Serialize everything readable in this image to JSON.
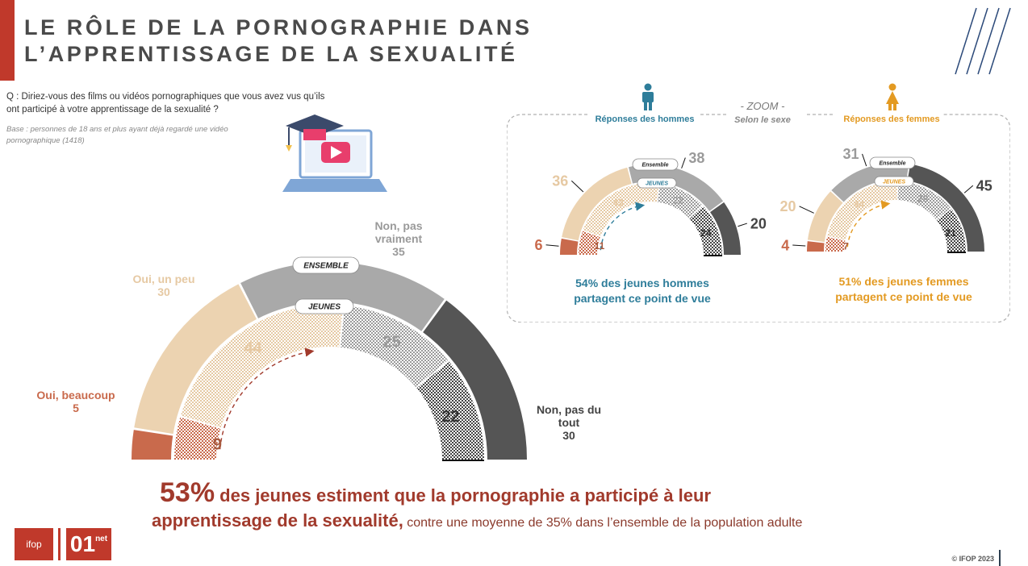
{
  "title_line1": "LE RÔLE DE LA PORNOGRAPHIE DANS",
  "title_line2": "L’APPRENTISSAGE DE LA SEXUALITÉ",
  "question": "Q : Diriez-vous des films ou vidéos pornographiques que vous avez vus qu’ils ont participé à votre apprentissage de la sexualité ?",
  "base": "Base : personnes de 18 ans et plus ayant déjà regardé une vidéo pornographique (1418)",
  "zoom_label": "- ZOOM -",
  "zoom_sub": "Selon le sexe",
  "men_header": "Réponses des hommes",
  "women_header": "Réponses des femmes",
  "men_note_line1": "54%  des jeunes hommes",
  "men_note_line2": "partagent ce point de vue",
  "women_note_line1": "51%  des jeunes femmes",
  "women_note_line2": "partagent ce point de vue",
  "conclusion_pct": "53%",
  "conclusion_part1": " des jeunes estiment que la pornographie a participé à leur",
  "conclusion_part2": "apprentissage de la sexualité,",
  "conclusion_part3": " contre une moyenne de 35% dans l’ensemble de la population adulte",
  "copyright": "© IFOP 2023",
  "logo_ifop": "ifop",
  "logo_01": "01",
  "logo_01_sup": "net",
  "colors": {
    "beaucoup": "#c96a4c",
    "unpeu": "#ecd3b1",
    "pasvraiment": "#a9a9a9",
    "pasdutout": "#555555",
    "accent": "#a13a2c",
    "men": "#2e7d9a",
    "women": "#e39a22"
  },
  "chart_data": [
    {
      "type": "semi-donut",
      "id": "main",
      "outer_label": "ENSEMBLE",
      "inner_label": "JEUNES",
      "categories": [
        "Oui, beaucoup",
        "Oui, un peu",
        "Non, pas vraiment",
        "Non, pas du tout"
      ],
      "series": [
        {
          "name": "ENSEMBLE",
          "values": [
            5,
            30,
            35,
            30
          ]
        },
        {
          "name": "JEUNES",
          "values": [
            9,
            44,
            25,
            22
          ]
        }
      ]
    },
    {
      "type": "semi-donut",
      "id": "men",
      "outer_label": "Ensemble",
      "inner_label": "JEUNES",
      "categories": [
        "Oui, beaucoup",
        "Oui, un peu",
        "Non, pas vraiment",
        "Non, pas du tout"
      ],
      "series": [
        {
          "name": "Ensemble",
          "values": [
            6,
            36,
            38,
            20
          ]
        },
        {
          "name": "JEUNES",
          "values": [
            11,
            43,
            22,
            24
          ]
        }
      ]
    },
    {
      "type": "semi-donut",
      "id": "women",
      "outer_label": "Ensemble",
      "inner_label": "JEUNES",
      "categories": [
        "Oui, beaucoup",
        "Oui, un peu",
        "Non, pas vraiment",
        "Non, pas du tout"
      ],
      "series": [
        {
          "name": "Ensemble",
          "values": [
            4,
            20,
            31,
            45
          ]
        },
        {
          "name": "JEUNES",
          "values": [
            7,
            44,
            28,
            21
          ]
        }
      ]
    }
  ],
  "main_category_labels": [
    {
      "line1": "Oui, beaucoup",
      "line2": "5"
    },
    {
      "line1": "Oui, un peu",
      "line2": "30"
    },
    {
      "line1": "Non, pas",
      "line1b": "vraiment",
      "line2": "35"
    },
    {
      "line1": "Non, pas du",
      "line1b": "tout",
      "line2": "30"
    }
  ]
}
